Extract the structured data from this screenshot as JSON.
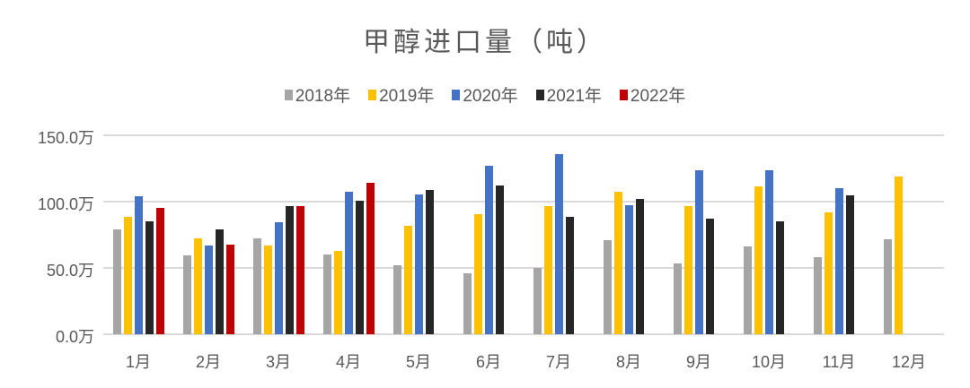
{
  "chart_data": {
    "type": "bar",
    "title": "甲醇进口量（吨）",
    "xlabel": "",
    "ylabel": "",
    "ylim": [
      0,
      150
    ],
    "y_unit": "万",
    "y_ticks": [
      "0.0万",
      "50.0万",
      "100.0万",
      "150.0万"
    ],
    "grid": true,
    "legend_position": "top",
    "categories": [
      "1月",
      "2月",
      "3月",
      "4月",
      "5月",
      "6月",
      "7月",
      "8月",
      "9月",
      "10月",
      "11月",
      "12月"
    ],
    "series": [
      {
        "name": "2018年",
        "color": "#A5A5A5",
        "values": [
          79.3,
          59.2,
          72.5,
          59.9,
          51.8,
          45.7,
          50.2,
          71.2,
          53.6,
          66.2,
          57.9,
          71.4
        ]
      },
      {
        "name": "2019年",
        "color": "#FFC000",
        "values": [
          88.3,
          72.5,
          66.7,
          63.1,
          81.8,
          90.3,
          96.8,
          107.2,
          96.4,
          111.5,
          91.9,
          118.7
        ]
      },
      {
        "name": "2020年",
        "color": "#4472C4",
        "values": [
          104.3,
          66.9,
          84.2,
          107.2,
          105.4,
          127.2,
          135.8,
          97.3,
          123.6,
          123.4,
          109.9,
          null
        ]
      },
      {
        "name": "2021年",
        "color": "#262626",
        "values": [
          84.9,
          78.8,
          96.4,
          100.7,
          108.6,
          112.0,
          88.3,
          102.0,
          87.4,
          85.1,
          104.7,
          null
        ]
      },
      {
        "name": "2022年",
        "color": "#C00000",
        "values": [
          95.1,
          67.4,
          96.4,
          114.0,
          null,
          null,
          null,
          null,
          null,
          null,
          null,
          null
        ]
      }
    ]
  }
}
